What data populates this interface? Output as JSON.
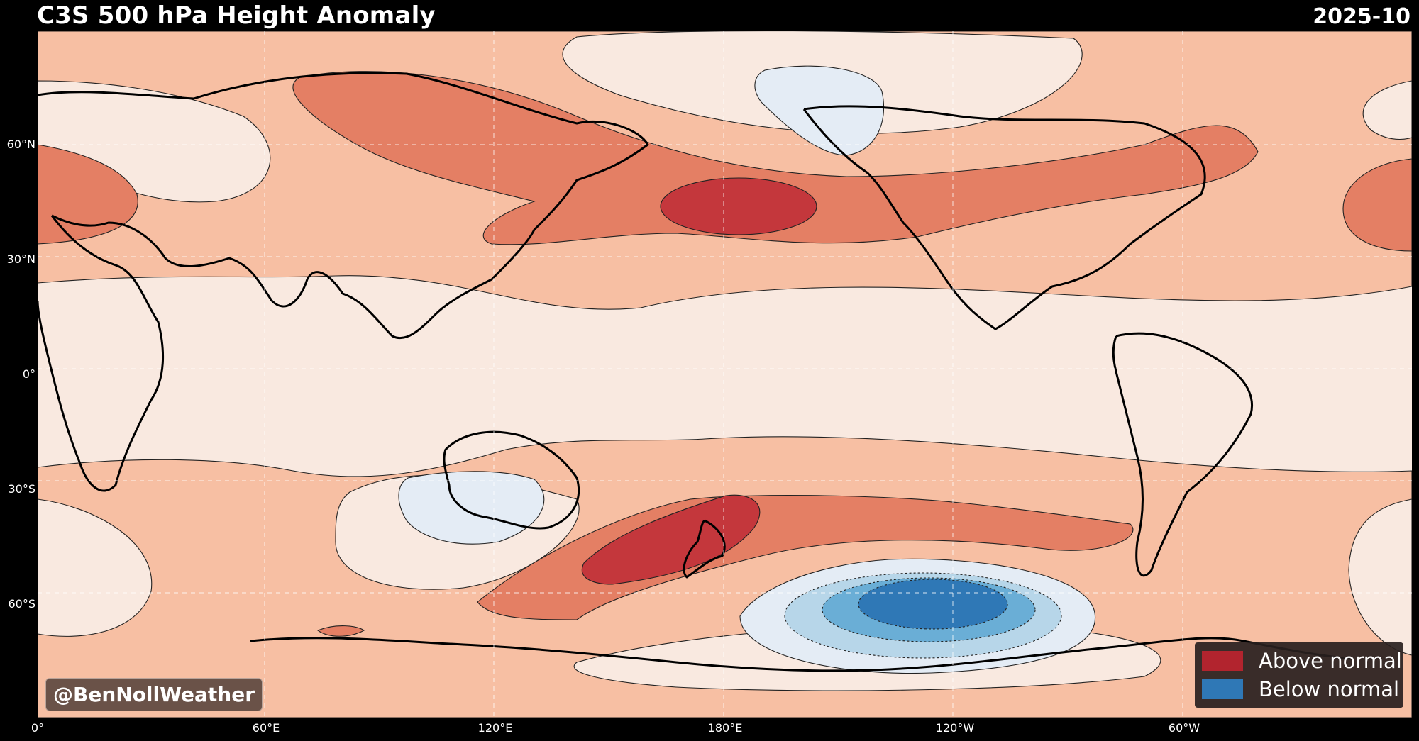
{
  "title": "C3S 500 hPa Height Anomaly",
  "date": "2025-10",
  "watermark": "@BenNollWeather",
  "latitude_labels": [
    "60°N",
    "30°N",
    "0°",
    "30°S",
    "60°S"
  ],
  "longitude_labels": [
    "0°",
    "60°E",
    "120°E",
    "180°E",
    "120°W",
    "60°W"
  ],
  "legend": [
    {
      "label": "Above normal",
      "color": "#b2242e"
    },
    {
      "label": "Below normal",
      "color": "#2f78b6"
    }
  ],
  "colors": {
    "anomaly_light_positive": "#f9e9e0",
    "anomaly_weak_positive": "#f7bfa3",
    "anomaly_moderate_positive": "#e47f64",
    "anomaly_strong_positive": "#c4373c",
    "anomaly_weak_negative": "#e4ecf5",
    "anomaly_moderate_negative": "#b7d6e9",
    "anomaly_strong_negative": "#6aaed6",
    "anomaly_very_strong_negative": "#2f78b6"
  }
}
